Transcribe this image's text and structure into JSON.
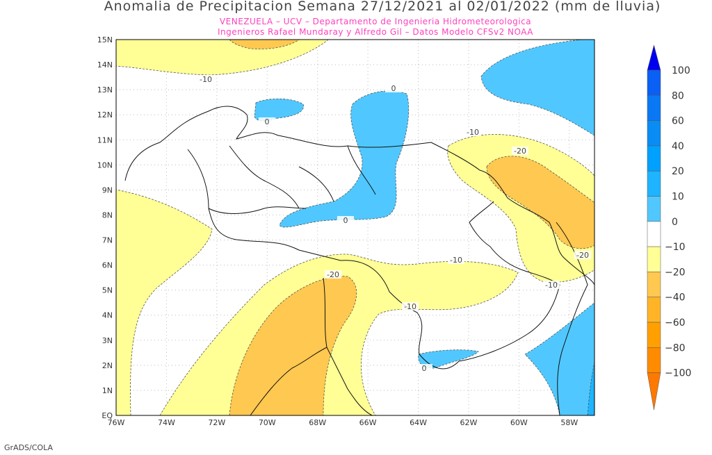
{
  "title": "Anomalia de Precipitacion Semana 27/12/2021 al 02/01/2022 (mm de lluvia)",
  "subtitle_1": "VENEZUELA – UCV – Departamento de Ingenieria Hidrometeorologica",
  "subtitle_2": "Ingenieros Rafael Mundaray y Alfredo Gil – Datos Modelo CFSv2 NOAA",
  "credit": "GrADS/COLA",
  "map": {
    "region": "Venezuela",
    "lon_range": [
      -76,
      -57
    ],
    "lat_range": [
      0,
      15
    ],
    "lon_ticks": [
      "76W",
      "74W",
      "72W",
      "70W",
      "68W",
      "66W",
      "64W",
      "62W",
      "60W",
      "58W"
    ],
    "lat_ticks": [
      "EQ",
      "1N",
      "2N",
      "3N",
      "4N",
      "5N",
      "6N",
      "7N",
      "8N",
      "9N",
      "10N",
      "11N",
      "12N",
      "13N",
      "14N",
      "15N"
    ],
    "contour_labels": [
      "-10",
      "0",
      "0",
      "0",
      "0",
      "-10",
      "-20",
      "-20",
      "-10",
      "-10",
      "-20",
      "-10",
      "0"
    ]
  },
  "colorbar": {
    "labels": [
      "100",
      "80",
      "60",
      "40",
      "20",
      "10",
      "0",
      "−10",
      "−20",
      "−40",
      "−60",
      "−80",
      "−100"
    ],
    "colors": [
      "#0000f0",
      "#0a5ff5",
      "#0a78f5",
      "#0a8cf5",
      "#00a0ff",
      "#1eb4ff",
      "#50c8ff",
      "#ffffff",
      "#ffff96",
      "#ffc850",
      "#ffb428",
      "#ffa000",
      "#ff8c00",
      "#ff7800"
    ]
  }
}
